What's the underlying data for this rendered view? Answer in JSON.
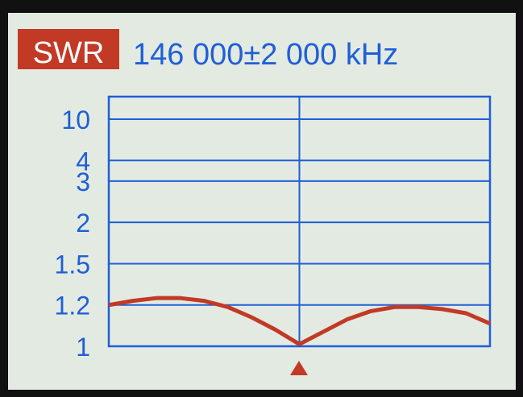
{
  "chart_data": {
    "type": "line",
    "badge": "SWR",
    "title": "146 000±2 000 kHz",
    "x": [
      144000,
      144250,
      144500,
      144750,
      145000,
      145250,
      145500,
      145750,
      146000,
      146250,
      146500,
      146750,
      147000,
      147250,
      147500,
      147750,
      148000
    ],
    "series": [
      {
        "name": "SWR",
        "color": "#c23a26",
        "values": [
          1.2,
          1.23,
          1.25,
          1.25,
          1.23,
          1.19,
          1.14,
          1.08,
          1.01,
          1.07,
          1.13,
          1.17,
          1.19,
          1.19,
          1.18,
          1.16,
          1.11
        ]
      }
    ],
    "xlim": [
      144000,
      148000
    ],
    "xticks": [
      146000
    ],
    "ylim": [
      1,
      10
    ],
    "yticks": [
      1,
      1.2,
      1.5,
      2,
      3,
      4,
      10
    ],
    "grid": true,
    "axis_color": "#1f5fd6"
  }
}
